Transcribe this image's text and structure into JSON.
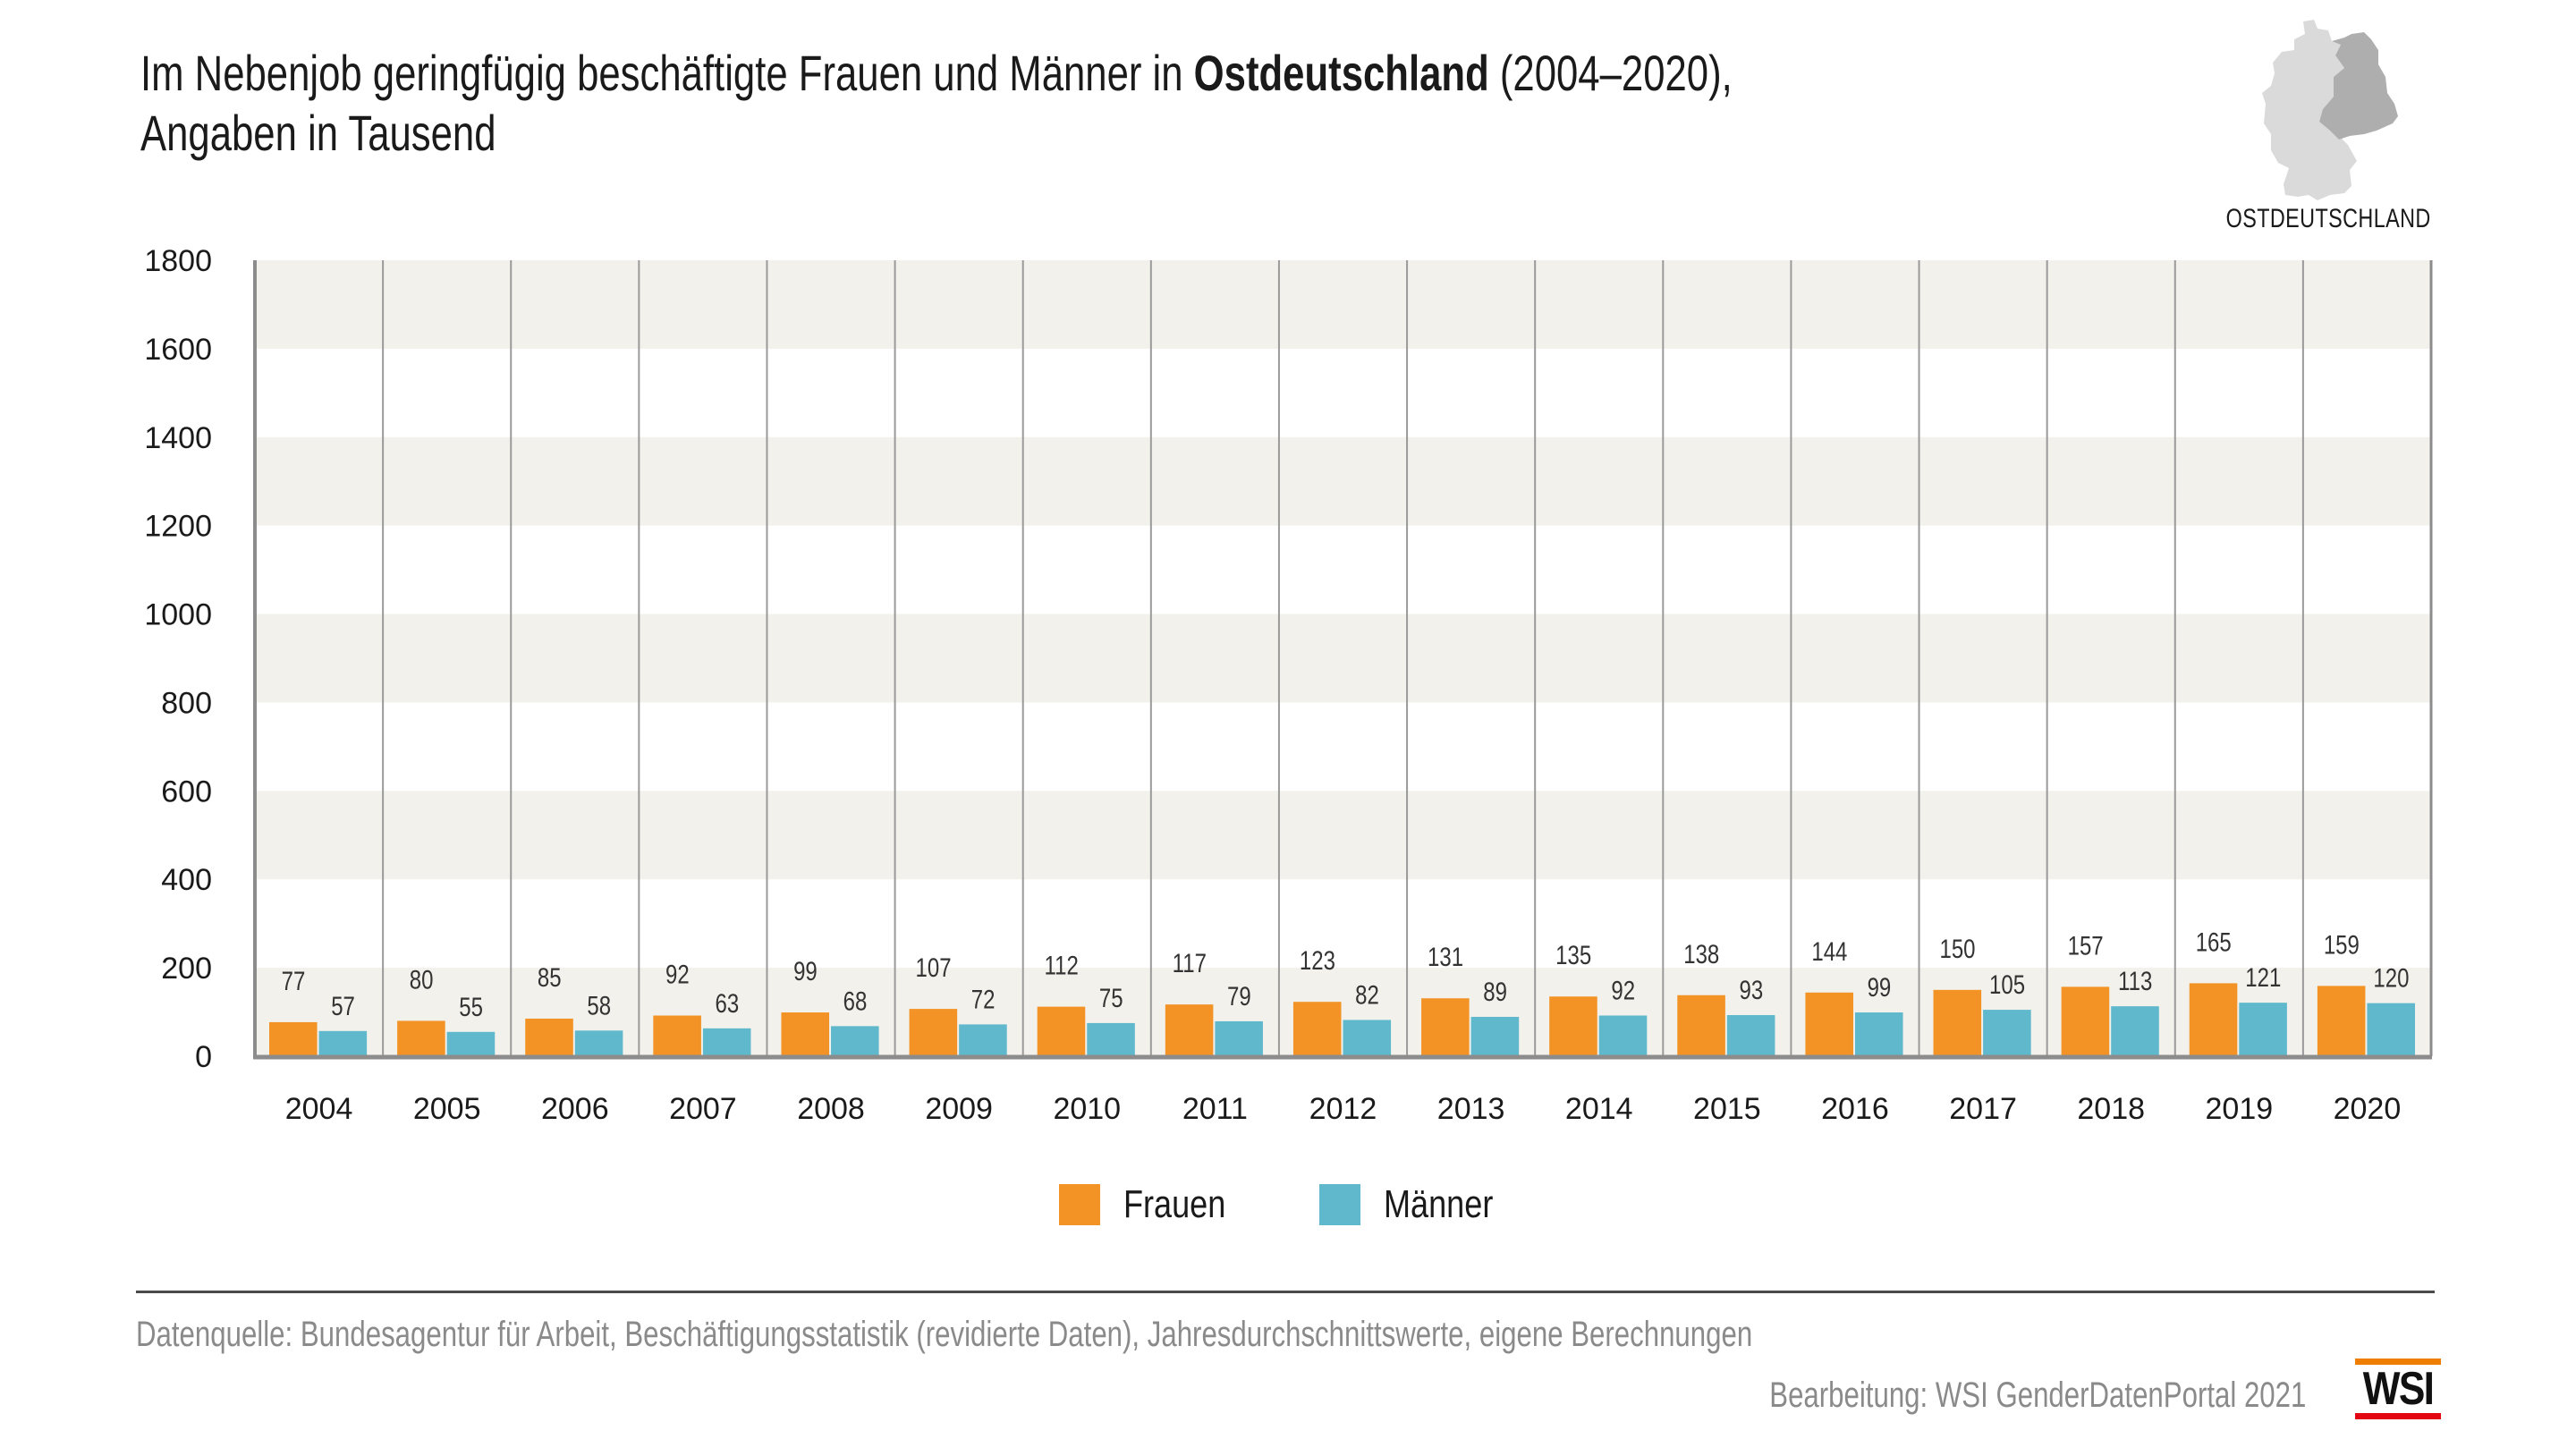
{
  "header": {
    "title_part1": "Im Nebenjob geringfügig beschäftigte Frauen und Männer in ",
    "title_bold": "Ostdeutschland",
    "title_part2": " (2004–2020),",
    "title_line2": "Angaben in Tausend",
    "map_label": "OSTDEUTSCHLAND",
    "map_icon": "germany-map-east-highlighted"
  },
  "colors": {
    "frauen": "#F39325",
    "maenner": "#5FB8CC",
    "band": "#F2F1EB",
    "divider": "#9A9A9A",
    "axis": "#8C8C8C",
    "map_west": "#DADADA",
    "map_east": "#AEAEAE"
  },
  "chart_data": {
    "type": "bar",
    "title": "Im Nebenjob geringfügig beschäftigte Frauen und Männer in Ostdeutschland (2004–2020), Angaben in Tausend",
    "xlabel": "",
    "ylabel": "",
    "ylim": [
      0,
      1800
    ],
    "yticks": [
      0,
      200,
      400,
      600,
      800,
      1000,
      1200,
      1400,
      1600,
      1800
    ],
    "grid": "alternating horizontal bands, vertical dividers between years",
    "legend_position": "bottom-center",
    "categories": [
      "2004",
      "2005",
      "2006",
      "2007",
      "2008",
      "2009",
      "2010",
      "2011",
      "2012",
      "2013",
      "2014",
      "2015",
      "2016",
      "2017",
      "2018",
      "2019",
      "2020"
    ],
    "series": [
      {
        "name": "Frauen",
        "color": "#F39325",
        "values": [
          77,
          80,
          85,
          92,
          99,
          107,
          112,
          117,
          123,
          131,
          135,
          138,
          144,
          150,
          157,
          165,
          159
        ]
      },
      {
        "name": "Männer",
        "color": "#5FB8CC",
        "values": [
          57,
          55,
          58,
          63,
          68,
          72,
          75,
          79,
          82,
          89,
          92,
          93,
          99,
          105,
          113,
          121,
          120
        ]
      }
    ]
  },
  "legend": [
    {
      "label": "Frauen",
      "color": "#F39325"
    },
    {
      "label": "Männer",
      "color": "#5FB8CC"
    }
  ],
  "footer": {
    "source": "Datenquelle: Bundesagentur für Arbeit, Beschäftigungsstatistik (revidierte Daten), Jahresdurchschnittswerte, eigene Berechnungen",
    "credit": "Bearbeitung: WSI GenderDatenPortal 2021",
    "logo_text": "WSI"
  }
}
